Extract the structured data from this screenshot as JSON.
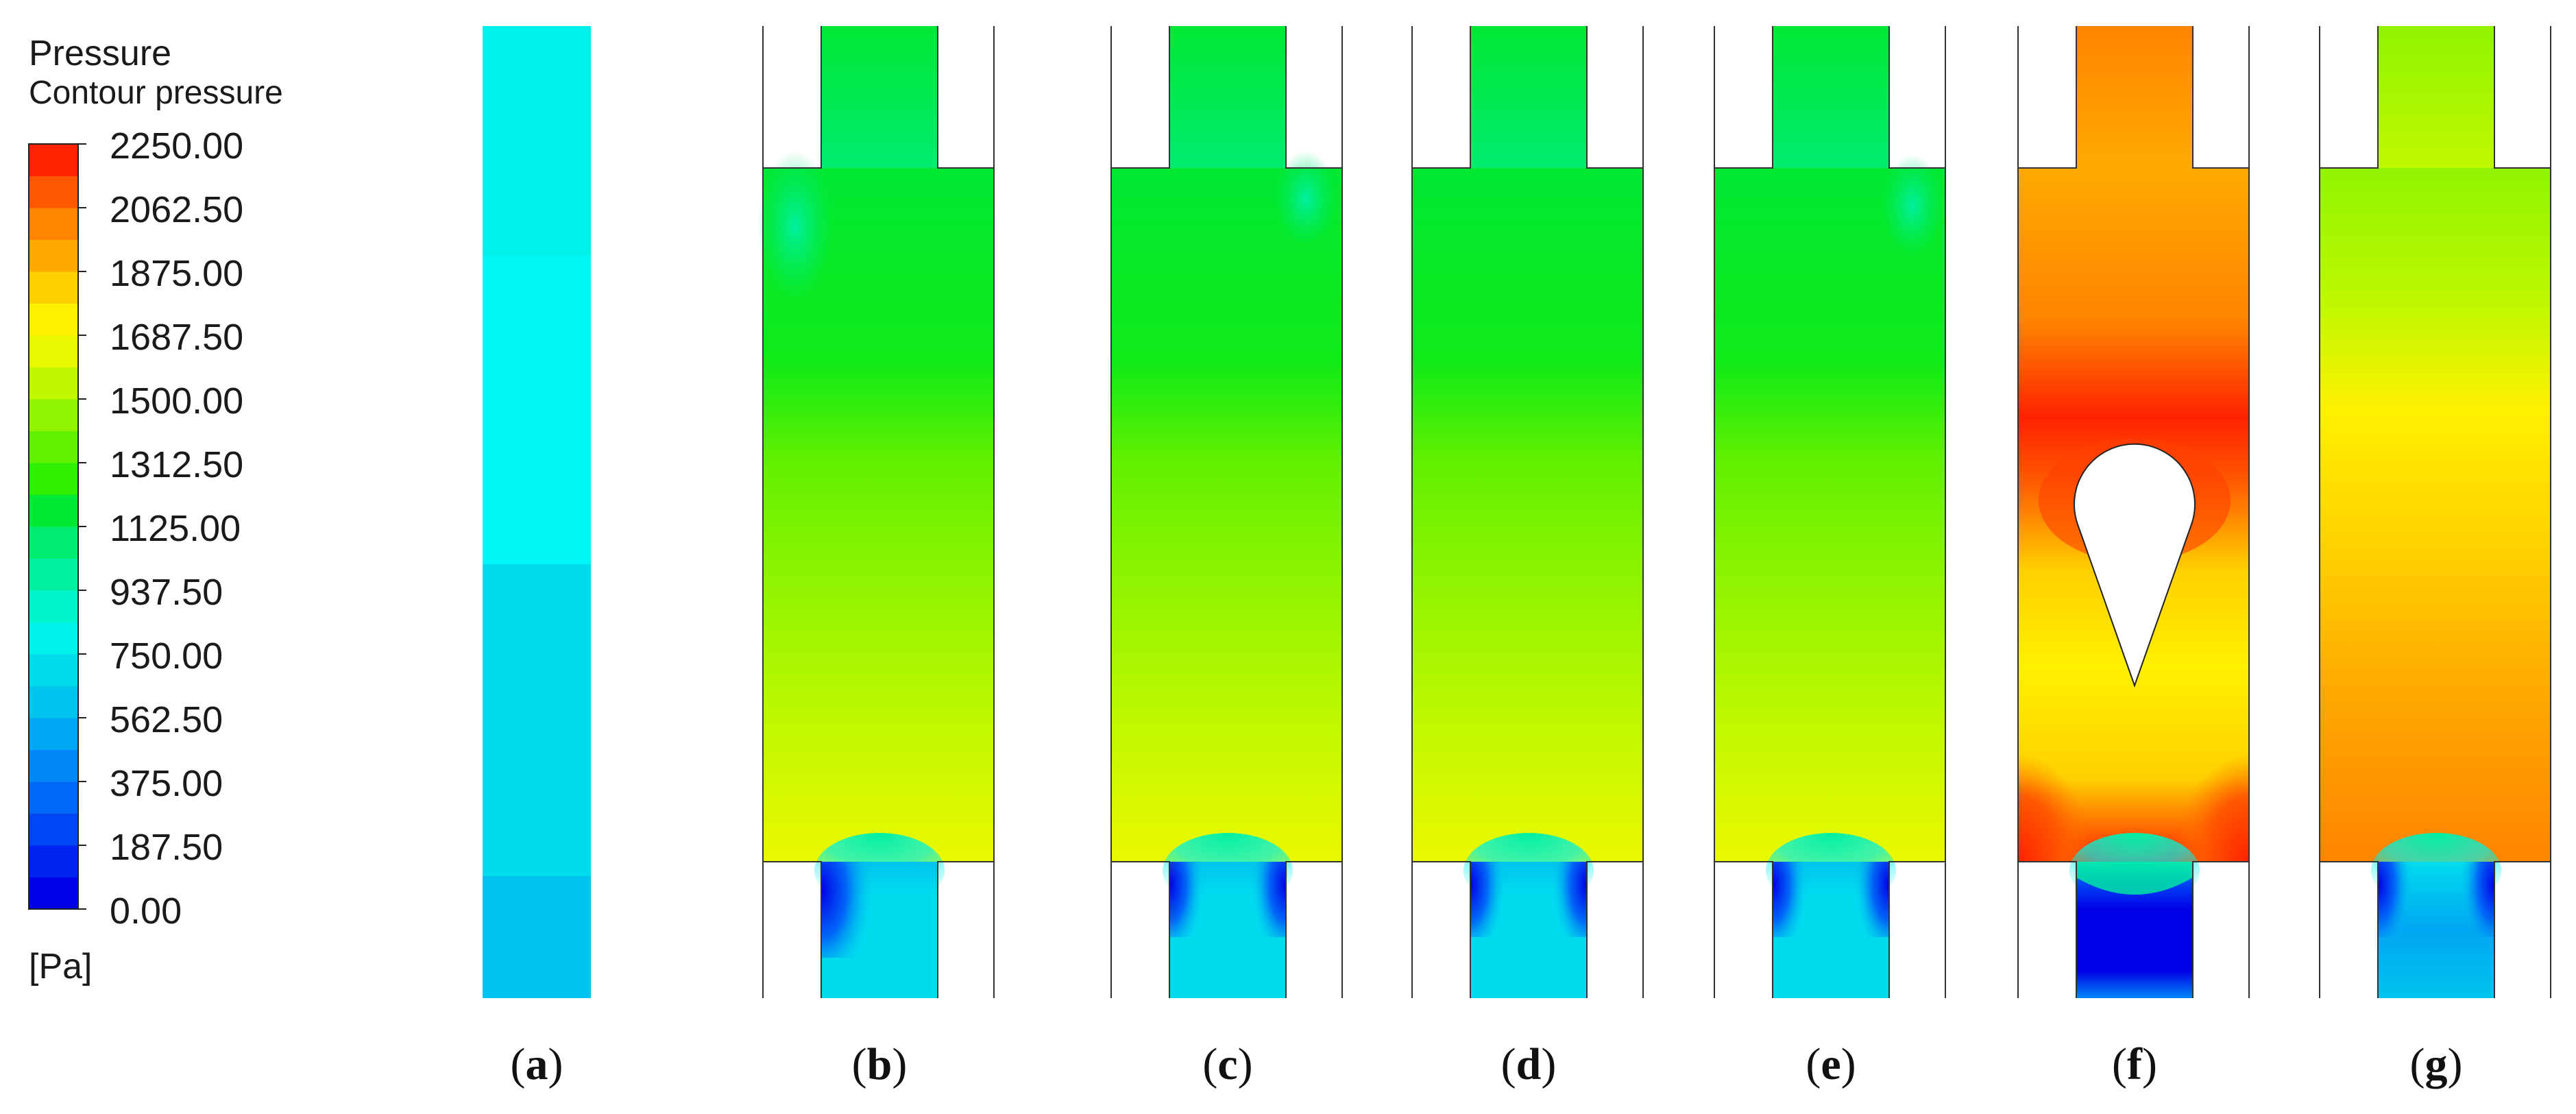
{
  "legend": {
    "title": "Pressure",
    "subtitle": "Contour pressure",
    "unit": "[Pa]",
    "min": 0,
    "max": 2250,
    "levels": 24,
    "tick_labels": [
      "2250.00",
      "2062.50",
      "1875.00",
      "1687.50",
      "1500.00",
      "1312.50",
      "1125.00",
      "937.50",
      "750.00",
      "562.50",
      "375.00",
      "187.50",
      "0.00"
    ],
    "band_colors": [
      "#0000e6",
      "#0024f0",
      "#0048f5",
      "#0068f8",
      "#0088f8",
      "#00a6f2",
      "#00c3ee",
      "#00dcee",
      "#00f0ea",
      "#00f5cc",
      "#00f0a0",
      "#00ec70",
      "#00e834",
      "#30ee00",
      "#60f000",
      "#90f400",
      "#c0f800",
      "#eaf800",
      "#fff000",
      "#ffd000",
      "#ffaa00",
      "#ff8400",
      "#ff5800",
      "#ff2200"
    ]
  },
  "panels": [
    {
      "label": "a",
      "shape": "plain channel"
    },
    {
      "label": "b",
      "shape": "expansion chamber"
    },
    {
      "label": "c",
      "shape": "expansion chamber"
    },
    {
      "label": "d",
      "shape": "expansion chamber"
    },
    {
      "label": "e",
      "shape": "expansion chamber"
    },
    {
      "label": "f",
      "shape": "expansion chamber with teardrop insert"
    },
    {
      "label": "g",
      "shape": "expansion chamber"
    }
  ]
}
